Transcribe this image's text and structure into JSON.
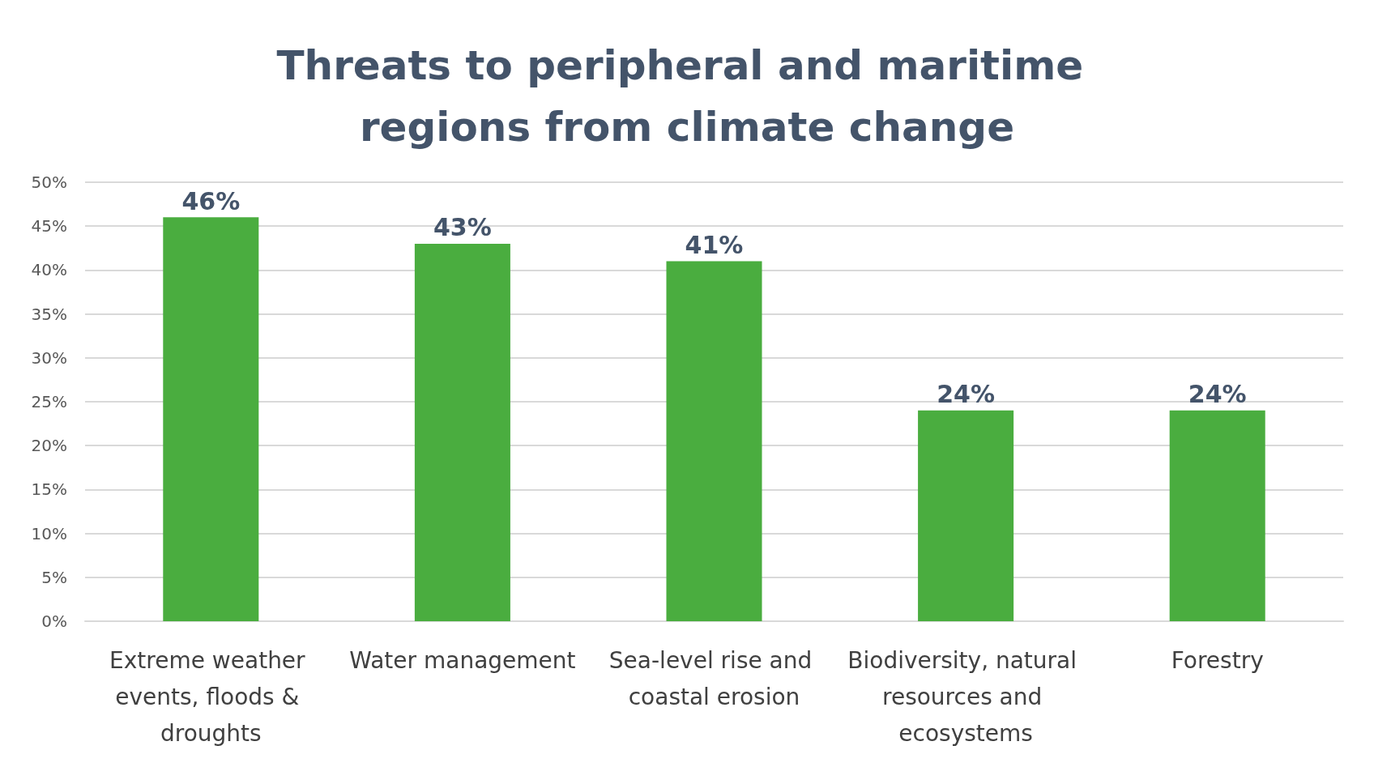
{
  "chart_data": {
    "type": "bar",
    "title": "Threats to peripheral and maritime regions from climate change",
    "categories": [
      "Extreme weather events, floods & droughts",
      "Water management",
      "Sea-level rise and coastal erosion",
      "Biodiversity, natural resources and ecosystems",
      "Forestry"
    ],
    "values": [
      46,
      43,
      41,
      24,
      24
    ],
    "value_labels": [
      "46%",
      "43%",
      "41%",
      "24%",
      "24%"
    ],
    "color": "#4aad3f",
    "ylim": [
      0,
      50
    ],
    "yticks": [
      {
        "value": 0,
        "label": "0%"
      },
      {
        "value": 5,
        "label": "5%"
      },
      {
        "value": 10,
        "label": "10%"
      },
      {
        "value": 15,
        "label": "15%"
      },
      {
        "value": 20,
        "label": "20%"
      },
      {
        "value": 25,
        "label": "25%"
      },
      {
        "value": 30,
        "label": "30%"
      },
      {
        "value": 35,
        "label": "35%"
      },
      {
        "value": 40,
        "label": "40%"
      },
      {
        "value": 45,
        "label": "45%"
      },
      {
        "value": 50,
        "label": "50%"
      }
    ],
    "grid": "y"
  }
}
